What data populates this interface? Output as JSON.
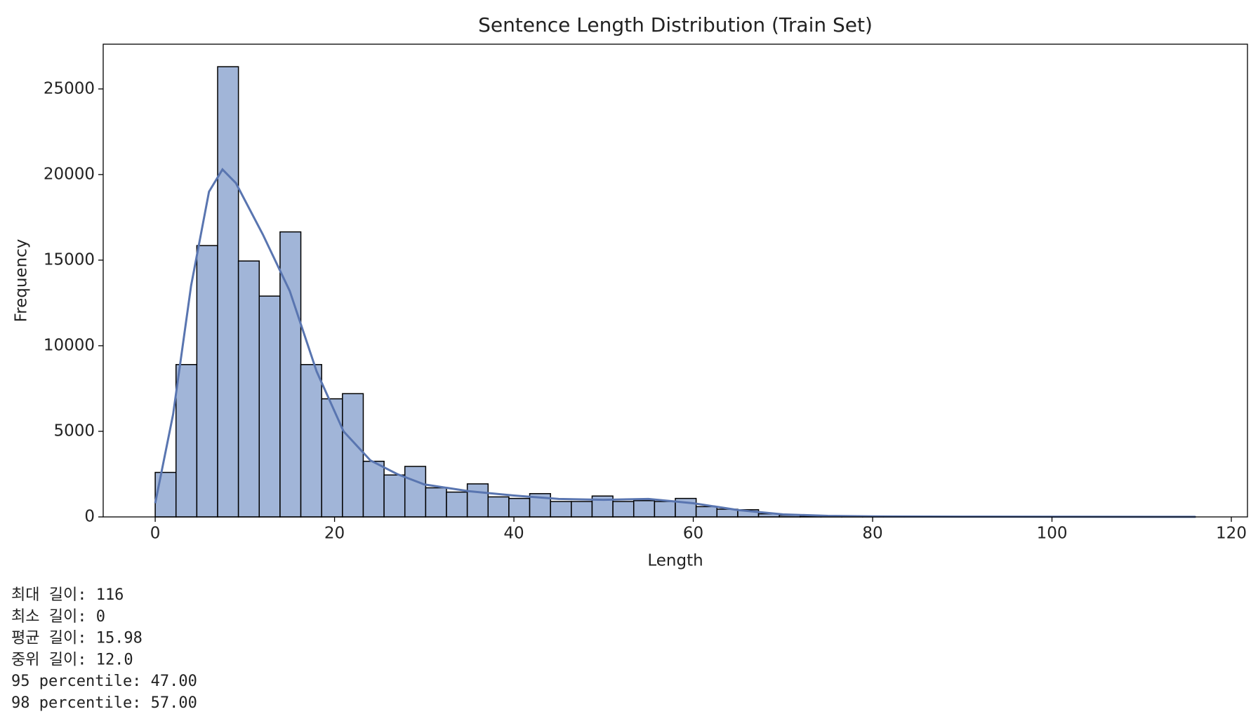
{
  "chart_data": {
    "type": "histogram",
    "title": "Sentence Length Distribution (Train Set)",
    "x_label": "Length",
    "y_label": "Frequency",
    "bins": [
      0,
      2.32,
      4.64,
      6.96,
      9.28,
      11.6,
      13.92,
      16.24,
      18.56,
      20.88,
      23.2,
      25.52,
      27.84,
      30.16,
      32.48,
      34.8,
      37.12,
      39.44,
      41.76,
      44.08,
      46.4,
      48.72,
      51.04,
      53.36,
      55.68,
      58,
      60.32,
      62.64,
      64.96,
      67.28,
      69.6,
      71.92,
      74.24,
      76.56,
      78.88,
      81.2,
      83.52,
      85.84,
      88.16,
      90.48,
      92.8,
      95.12,
      97.44,
      99.76,
      102.08,
      104.4,
      106.72,
      109.04,
      111.36,
      113.68,
      116
    ],
    "values": [
      2600,
      8900,
      15850,
      26300,
      14950,
      12900,
      16650,
      8900,
      6900,
      7200,
      3250,
      2450,
      2950,
      1700,
      1450,
      1930,
      1170,
      1080,
      1360,
      900,
      900,
      1220,
      900,
      950,
      900,
      1080,
      600,
      450,
      420,
      180,
      100,
      60,
      40,
      30,
      20,
      15,
      10,
      8,
      5,
      5,
      3,
      3,
      2,
      2,
      1,
      1,
      1,
      1,
      1,
      1
    ],
    "color": "#a1b5d8",
    "edge_color": "#000000",
    "kde": {
      "x": [
        0,
        2,
        4,
        6,
        7.5,
        9,
        12,
        15,
        18,
        21,
        24,
        27,
        30,
        35,
        40,
        45,
        50,
        55,
        60,
        65,
        70,
        75,
        80,
        90,
        100,
        116
      ],
      "values": [
        800,
        6000,
        13500,
        19000,
        20300,
        19500,
        16500,
        13200,
        8500,
        5000,
        3300,
        2500,
        1900,
        1500,
        1250,
        1050,
        1000,
        1050,
        800,
        400,
        150,
        60,
        30,
        15,
        10,
        5
      ],
      "color": "#5975b0"
    },
    "xlim": [
      -5.8,
      121.8
    ],
    "ylim": [
      0,
      27615
    ],
    "xticks": [
      0,
      20,
      40,
      60,
      80,
      100,
      120
    ],
    "yticks": [
      0,
      5000,
      10000,
      15000,
      20000,
      25000
    ]
  },
  "output_lines": [
    "최대 길이: 116",
    "최소 길이: 0",
    "평균 길이: 15.98",
    "중위 길이: 12.0",
    "95 percentile: 47.00",
    "98 percentile: 57.00"
  ]
}
